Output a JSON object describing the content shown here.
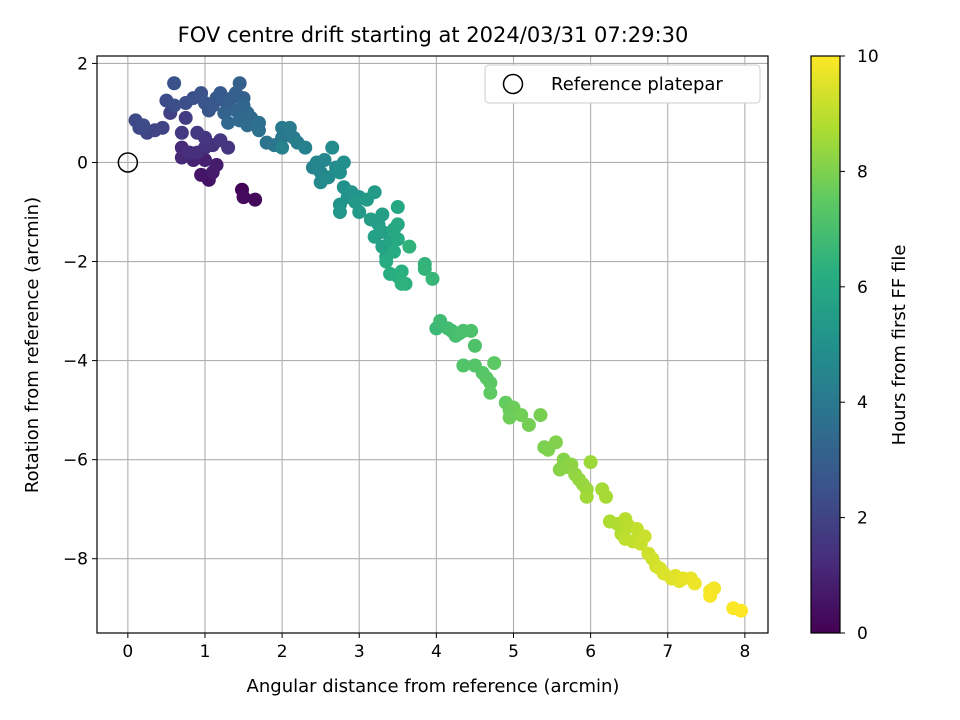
{
  "chart_data": {
    "type": "scatter",
    "title": "FOV centre drift starting at 2024/03/31 07:29:30",
    "xlabel": "Angular distance from reference (arcmin)",
    "ylabel": "Rotation from reference (arcmin)",
    "xlim": [
      -0.4,
      8.3
    ],
    "ylim": [
      -9.5,
      2.15
    ],
    "xticks": [
      0,
      1,
      2,
      3,
      4,
      5,
      6,
      7,
      8
    ],
    "yticks": [
      2,
      0,
      -2,
      -4,
      -6,
      -8
    ],
    "grid": true,
    "legend": {
      "entries": [
        "Reference platepar"
      ],
      "location": "top-right"
    },
    "reference_point": {
      "x": 0,
      "y": 0,
      "label": "Reference platepar"
    },
    "colorbar": {
      "label": "Hours from first FF file",
      "colormap": "viridis",
      "range": [
        0,
        10
      ],
      "ticks": [
        0,
        2,
        4,
        6,
        8,
        10
      ]
    },
    "series": [
      {
        "points": [
          {
            "x": 1.48,
            "y": -0.55,
            "h": 0.1
          },
          {
            "x": 1.65,
            "y": -0.75,
            "h": 0.2
          },
          {
            "x": 1.5,
            "y": -0.7,
            "h": 0.3
          },
          {
            "x": 1.05,
            "y": -0.35,
            "h": 0.5
          },
          {
            "x": 0.95,
            "y": -0.25,
            "h": 0.6
          },
          {
            "x": 1.1,
            "y": -0.2,
            "h": 0.7
          },
          {
            "x": 1.15,
            "y": -0.05,
            "h": 0.8
          },
          {
            "x": 1.0,
            "y": 0.05,
            "h": 0.9
          },
          {
            "x": 0.85,
            "y": 0.05,
            "h": 1.0
          },
          {
            "x": 0.7,
            "y": 0.1,
            "h": 1.1
          },
          {
            "x": 0.7,
            "y": 0.3,
            "h": 1.2
          },
          {
            "x": 0.8,
            "y": 0.2,
            "h": 1.3
          },
          {
            "x": 0.9,
            "y": 0.2,
            "h": 1.35
          },
          {
            "x": 1.0,
            "y": 0.3,
            "h": 1.4
          },
          {
            "x": 1.1,
            "y": 0.35,
            "h": 1.45
          },
          {
            "x": 1.3,
            "y": 0.3,
            "h": 1.5
          },
          {
            "x": 1.2,
            "y": 0.45,
            "h": 1.55
          },
          {
            "x": 1.0,
            "y": 0.5,
            "h": 1.6
          },
          {
            "x": 0.9,
            "y": 0.6,
            "h": 1.65
          },
          {
            "x": 0.7,
            "y": 0.6,
            "h": 1.7
          },
          {
            "x": 0.75,
            "y": 0.9,
            "h": 1.8
          },
          {
            "x": 0.55,
            "y": 1.0,
            "h": 1.9
          },
          {
            "x": 0.45,
            "y": 0.7,
            "h": 2.0
          },
          {
            "x": 0.35,
            "y": 0.65,
            "h": 2.05
          },
          {
            "x": 0.25,
            "y": 0.6,
            "h": 2.1
          },
          {
            "x": 0.15,
            "y": 0.7,
            "h": 2.15
          },
          {
            "x": 0.1,
            "y": 0.85,
            "h": 2.2
          },
          {
            "x": 0.2,
            "y": 0.75,
            "h": 2.25
          },
          {
            "x": 0.5,
            "y": 1.25,
            "h": 2.3
          },
          {
            "x": 0.6,
            "y": 1.15,
            "h": 2.35
          },
          {
            "x": 0.75,
            "y": 1.2,
            "h": 2.4
          },
          {
            "x": 0.85,
            "y": 1.3,
            "h": 2.45
          },
          {
            "x": 0.95,
            "y": 1.4,
            "h": 2.5
          },
          {
            "x": 0.6,
            "y": 1.6,
            "h": 2.55
          },
          {
            "x": 1.0,
            "y": 1.2,
            "h": 2.6
          },
          {
            "x": 1.05,
            "y": 1.05,
            "h": 2.65
          },
          {
            "x": 1.1,
            "y": 1.15,
            "h": 2.7
          },
          {
            "x": 1.15,
            "y": 1.3,
            "h": 2.75
          },
          {
            "x": 1.2,
            "y": 1.4,
            "h": 2.8
          },
          {
            "x": 1.25,
            "y": 1.25,
            "h": 2.85
          },
          {
            "x": 1.3,
            "y": 1.1,
            "h": 2.9
          },
          {
            "x": 1.35,
            "y": 1.3,
            "h": 2.95
          },
          {
            "x": 1.4,
            "y": 1.4,
            "h": 3.0
          },
          {
            "x": 1.45,
            "y": 1.6,
            "h": 3.05
          },
          {
            "x": 1.5,
            "y": 1.3,
            "h": 3.1
          },
          {
            "x": 1.25,
            "y": 1.0,
            "h": 3.15
          },
          {
            "x": 1.4,
            "y": 1.05,
            "h": 3.2
          },
          {
            "x": 1.5,
            "y": 1.15,
            "h": 3.25
          },
          {
            "x": 1.55,
            "y": 1.0,
            "h": 3.3
          },
          {
            "x": 1.3,
            "y": 0.8,
            "h": 3.35
          },
          {
            "x": 1.45,
            "y": 0.85,
            "h": 3.4
          },
          {
            "x": 1.6,
            "y": 0.9,
            "h": 3.45
          },
          {
            "x": 1.55,
            "y": 0.75,
            "h": 3.5
          },
          {
            "x": 1.7,
            "y": 0.8,
            "h": 3.6
          },
          {
            "x": 1.7,
            "y": 0.65,
            "h": 3.7
          },
          {
            "x": 1.8,
            "y": 0.4,
            "h": 3.8
          },
          {
            "x": 1.9,
            "y": 0.35,
            "h": 3.9
          },
          {
            "x": 2.0,
            "y": 0.5,
            "h": 4.0
          },
          {
            "x": 2.0,
            "y": 0.7,
            "h": 4.05
          },
          {
            "x": 2.1,
            "y": 0.7,
            "h": 4.1
          },
          {
            "x": 2.15,
            "y": 0.5,
            "h": 4.15
          },
          {
            "x": 2.2,
            "y": 0.4,
            "h": 4.2
          },
          {
            "x": 2.3,
            "y": 0.3,
            "h": 4.3
          },
          {
            "x": 2.0,
            "y": 0.3,
            "h": 4.35
          },
          {
            "x": 2.4,
            "y": -0.1,
            "h": 4.4
          },
          {
            "x": 2.45,
            "y": 0.0,
            "h": 4.5
          },
          {
            "x": 2.5,
            "y": -0.2,
            "h": 4.55
          },
          {
            "x": 2.55,
            "y": 0.05,
            "h": 4.6
          },
          {
            "x": 2.5,
            "y": -0.4,
            "h": 4.7
          },
          {
            "x": 2.6,
            "y": -0.3,
            "h": 4.75
          },
          {
            "x": 2.65,
            "y": 0.3,
            "h": 4.8
          },
          {
            "x": 2.7,
            "y": -0.1,
            "h": 4.85
          },
          {
            "x": 2.8,
            "y": 0.0,
            "h": 4.9
          },
          {
            "x": 2.75,
            "y": -0.2,
            "h": 4.95
          },
          {
            "x": 2.8,
            "y": -0.5,
            "h": 5.0
          },
          {
            "x": 2.85,
            "y": -0.7,
            "h": 5.05
          },
          {
            "x": 2.75,
            "y": -0.85,
            "h": 5.1
          },
          {
            "x": 2.9,
            "y": -0.6,
            "h": 5.15
          },
          {
            "x": 3.0,
            "y": -0.7,
            "h": 5.2
          },
          {
            "x": 2.75,
            "y": -1.0,
            "h": 5.25
          },
          {
            "x": 2.95,
            "y": -0.8,
            "h": 5.3
          },
          {
            "x": 3.0,
            "y": -1.0,
            "h": 5.35
          },
          {
            "x": 3.1,
            "y": -0.75,
            "h": 5.4
          },
          {
            "x": 3.2,
            "y": -0.6,
            "h": 5.45
          },
          {
            "x": 3.15,
            "y": -1.15,
            "h": 5.5
          },
          {
            "x": 3.25,
            "y": -1.25,
            "h": 5.55
          },
          {
            "x": 3.3,
            "y": -1.05,
            "h": 5.6
          },
          {
            "x": 3.3,
            "y": -1.4,
            "h": 5.65
          },
          {
            "x": 3.2,
            "y": -1.5,
            "h": 5.7
          },
          {
            "x": 3.3,
            "y": -1.7,
            "h": 5.75
          },
          {
            "x": 3.4,
            "y": -1.6,
            "h": 5.8
          },
          {
            "x": 3.35,
            "y": -1.9,
            "h": 5.85
          },
          {
            "x": 3.45,
            "y": -1.35,
            "h": 5.9
          },
          {
            "x": 3.5,
            "y": -0.9,
            "h": 5.95
          },
          {
            "x": 3.5,
            "y": -1.25,
            "h": 6.0
          },
          {
            "x": 3.5,
            "y": -1.55,
            "h": 6.05
          },
          {
            "x": 3.45,
            "y": -1.8,
            "h": 6.1
          },
          {
            "x": 3.35,
            "y": -2.0,
            "h": 6.15
          },
          {
            "x": 3.4,
            "y": -2.25,
            "h": 6.2
          },
          {
            "x": 3.5,
            "y": -2.3,
            "h": 6.25
          },
          {
            "x": 3.55,
            "y": -2.2,
            "h": 6.3
          },
          {
            "x": 3.6,
            "y": -2.45,
            "h": 6.35
          },
          {
            "x": 3.55,
            "y": -2.45,
            "h": 6.4
          },
          {
            "x": 3.65,
            "y": -1.7,
            "h": 6.45
          },
          {
            "x": 3.85,
            "y": -2.05,
            "h": 6.5
          },
          {
            "x": 3.85,
            "y": -2.15,
            "h": 6.55
          },
          {
            "x": 3.95,
            "y": -2.35,
            "h": 6.6
          },
          {
            "x": 4.0,
            "y": -3.35,
            "h": 6.7
          },
          {
            "x": 4.05,
            "y": -3.2,
            "h": 6.8
          },
          {
            "x": 4.15,
            "y": -3.35,
            "h": 6.85
          },
          {
            "x": 4.2,
            "y": -3.4,
            "h": 6.9
          },
          {
            "x": 4.25,
            "y": -3.5,
            "h": 6.95
          },
          {
            "x": 4.3,
            "y": -3.45,
            "h": 7.0
          },
          {
            "x": 4.35,
            "y": -3.4,
            "h": 7.05
          },
          {
            "x": 4.45,
            "y": -3.4,
            "h": 7.1
          },
          {
            "x": 4.5,
            "y": -3.7,
            "h": 7.15
          },
          {
            "x": 4.35,
            "y": -4.1,
            "h": 7.2
          },
          {
            "x": 4.5,
            "y": -4.1,
            "h": 7.25
          },
          {
            "x": 4.6,
            "y": -4.25,
            "h": 7.3
          },
          {
            "x": 4.65,
            "y": -4.35,
            "h": 7.35
          },
          {
            "x": 4.7,
            "y": -4.45,
            "h": 7.4
          },
          {
            "x": 4.75,
            "y": -4.05,
            "h": 7.45
          },
          {
            "x": 4.7,
            "y": -4.65,
            "h": 7.5
          },
          {
            "x": 4.9,
            "y": -4.85,
            "h": 7.6
          },
          {
            "x": 4.95,
            "y": -5.0,
            "h": 7.65
          },
          {
            "x": 5.0,
            "y": -4.95,
            "h": 7.7
          },
          {
            "x": 4.95,
            "y": -5.15,
            "h": 7.75
          },
          {
            "x": 5.1,
            "y": -5.1,
            "h": 7.8
          },
          {
            "x": 5.2,
            "y": -5.3,
            "h": 7.85
          },
          {
            "x": 5.35,
            "y": -5.1,
            "h": 7.9
          },
          {
            "x": 5.4,
            "y": -5.75,
            "h": 7.95
          },
          {
            "x": 5.45,
            "y": -5.8,
            "h": 8.0
          },
          {
            "x": 5.55,
            "y": -5.65,
            "h": 8.05
          },
          {
            "x": 5.65,
            "y": -6.0,
            "h": 8.1
          },
          {
            "x": 5.6,
            "y": -6.2,
            "h": 8.15
          },
          {
            "x": 5.7,
            "y": -6.15,
            "h": 8.2
          },
          {
            "x": 5.75,
            "y": -6.1,
            "h": 8.25
          },
          {
            "x": 5.8,
            "y": -6.3,
            "h": 8.3
          },
          {
            "x": 5.85,
            "y": -6.4,
            "h": 8.35
          },
          {
            "x": 5.9,
            "y": -6.5,
            "h": 8.4
          },
          {
            "x": 5.95,
            "y": -6.6,
            "h": 8.45
          },
          {
            "x": 6.0,
            "y": -6.05,
            "h": 8.5
          },
          {
            "x": 5.95,
            "y": -6.75,
            "h": 8.55
          },
          {
            "x": 6.15,
            "y": -6.6,
            "h": 8.6
          },
          {
            "x": 6.2,
            "y": -6.75,
            "h": 8.65
          },
          {
            "x": 6.25,
            "y": -7.25,
            "h": 8.75
          },
          {
            "x": 6.35,
            "y": -7.3,
            "h": 8.8
          },
          {
            "x": 6.4,
            "y": -7.5,
            "h": 8.85
          },
          {
            "x": 6.45,
            "y": -7.2,
            "h": 8.9
          },
          {
            "x": 6.5,
            "y": -7.35,
            "h": 8.95
          },
          {
            "x": 6.45,
            "y": -7.6,
            "h": 9.0
          },
          {
            "x": 6.55,
            "y": -7.65,
            "h": 9.05
          },
          {
            "x": 6.6,
            "y": -7.4,
            "h": 9.1
          },
          {
            "x": 6.65,
            "y": -7.7,
            "h": 9.15
          },
          {
            "x": 6.7,
            "y": -7.55,
            "h": 9.2
          },
          {
            "x": 6.75,
            "y": -7.9,
            "h": 9.25
          },
          {
            "x": 6.8,
            "y": -8.0,
            "h": 9.3
          },
          {
            "x": 6.85,
            "y": -8.15,
            "h": 9.35
          },
          {
            "x": 6.9,
            "y": -8.2,
            "h": 9.4
          },
          {
            "x": 6.95,
            "y": -8.3,
            "h": 9.45
          },
          {
            "x": 7.05,
            "y": -8.4,
            "h": 9.5
          },
          {
            "x": 7.1,
            "y": -8.35,
            "h": 9.55
          },
          {
            "x": 7.15,
            "y": -8.45,
            "h": 9.6
          },
          {
            "x": 7.2,
            "y": -8.4,
            "h": 9.65
          },
          {
            "x": 7.3,
            "y": -8.4,
            "h": 9.7
          },
          {
            "x": 7.35,
            "y": -8.5,
            "h": 9.75
          },
          {
            "x": 7.55,
            "y": -8.65,
            "h": 9.8
          },
          {
            "x": 7.6,
            "y": -8.6,
            "h": 9.85
          },
          {
            "x": 7.55,
            "y": -8.75,
            "h": 9.9
          },
          {
            "x": 7.85,
            "y": -9.0,
            "h": 9.95
          },
          {
            "x": 7.95,
            "y": -9.05,
            "h": 10.0
          }
        ]
      }
    ]
  }
}
